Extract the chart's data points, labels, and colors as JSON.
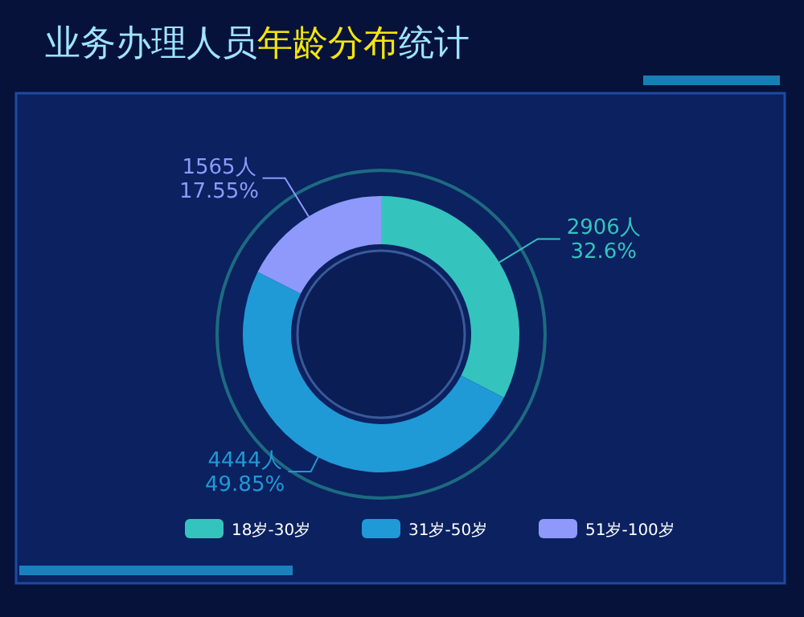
{
  "chart_data": {
    "type": "donut",
    "title": "业务办理人员年龄分布统计",
    "categories": [
      "18岁-30岁",
      "31岁-50岁",
      "51岁-100岁"
    ],
    "values": [
      2906,
      4444,
      1565
    ],
    "colors": [
      "#35c3be",
      "#1f9ad6",
      "#8e99fb"
    ],
    "value_labels": [
      "2906人\n32.6%",
      "4444人\n49.85%",
      "1565人\n17.55%"
    ],
    "legend": "bottom"
  }
}
